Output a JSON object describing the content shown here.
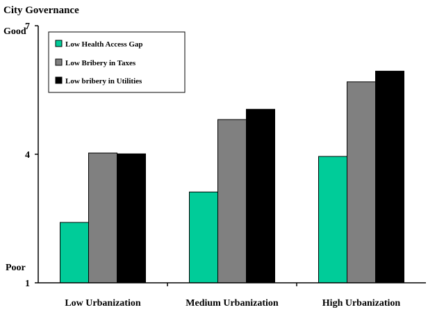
{
  "chart_data": {
    "type": "bar",
    "title": "City Governance",
    "categories": [
      "Low Urbanization",
      "Medium Urbanization",
      "High Urbanization"
    ],
    "series": [
      {
        "name": "Low Health Access Gap",
        "values": [
          2.41,
          3.12,
          3.95
        ],
        "color": "#00CC99"
      },
      {
        "name": "Low Bribery in Taxes",
        "values": [
          4.03,
          4.81,
          5.69
        ],
        "color": "#808080"
      },
      {
        "name": "Low bribery in Utilities",
        "values": [
          4.01,
          5.05,
          5.94
        ],
        "color": "#000000"
      }
    ],
    "ylim": [
      1,
      7
    ],
    "yticks": [
      1,
      4,
      7
    ],
    "y_annotations": {
      "top": "Good",
      "bottom": "Poor"
    },
    "legend": "top-left",
    "grid": false
  }
}
